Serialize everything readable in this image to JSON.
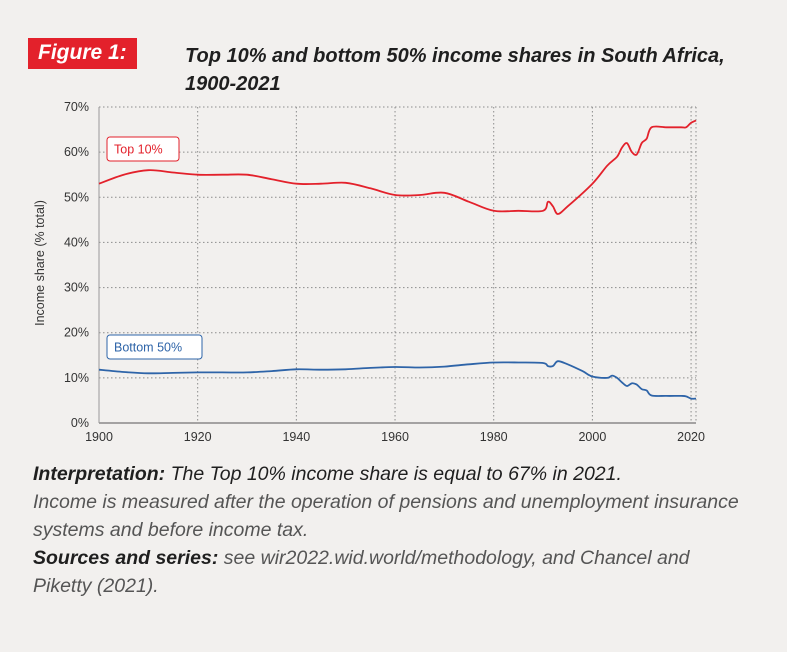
{
  "figure": {
    "label": "Figure 1:",
    "title": "Top 10% and bottom 50% income shares in South Africa, 1900-2021"
  },
  "colors": {
    "top10": "#e3212b",
    "bottom50": "#2e64a8",
    "grid": "#8c8c8c",
    "text": "#333333"
  },
  "chart_data": {
    "type": "line",
    "ylabel": "Income share (% total)",
    "xlim": [
      1900,
      2021
    ],
    "ylim": [
      0,
      70
    ],
    "x_ticks": [
      1900,
      1920,
      1940,
      1960,
      1980,
      2000,
      2020
    ],
    "y_ticks": [
      "0%",
      "10%",
      "20%",
      "30%",
      "40%",
      "50%",
      "60%",
      "70%"
    ],
    "grid": true,
    "series": [
      {
        "name": "Top 10%",
        "color": "#e3212b",
        "x": [
          1900,
          1905,
          1910,
          1915,
          1920,
          1925,
          1930,
          1935,
          1940,
          1945,
          1950,
          1955,
          1960,
          1965,
          1970,
          1975,
          1980,
          1985,
          1990,
          1991,
          1992,
          1993,
          1995,
          2000,
          2003,
          2005,
          2006,
          2007,
          2008,
          2009,
          2010,
          2011,
          2012,
          2015,
          2018,
          2019,
          2020,
          2021
        ],
        "values": [
          53,
          55,
          56,
          55.5,
          55,
          55,
          55,
          54,
          53,
          53,
          53.2,
          52,
          50.5,
          50.5,
          51,
          49,
          47,
          47,
          47,
          49,
          48,
          46.3,
          48,
          53,
          57,
          59,
          61,
          62,
          60,
          59.5,
          62,
          63,
          65.5,
          65.5,
          65.5,
          65.5,
          66.5,
          67
        ]
      },
      {
        "name": "Bottom 50%",
        "color": "#2e64a8",
        "x": [
          1900,
          1905,
          1910,
          1915,
          1920,
          1925,
          1930,
          1935,
          1940,
          1945,
          1950,
          1955,
          1960,
          1965,
          1970,
          1975,
          1980,
          1985,
          1990,
          1991,
          1992,
          1993,
          1995,
          1998,
          2000,
          2003,
          2004,
          2005,
          2006,
          2007,
          2008,
          2009,
          2010,
          2011,
          2012,
          2015,
          2018,
          2019,
          2020,
          2021
        ],
        "values": [
          11.8,
          11.3,
          11,
          11.1,
          11.2,
          11.2,
          11.2,
          11.5,
          11.9,
          11.8,
          11.9,
          12.2,
          12.4,
          12.3,
          12.5,
          13,
          13.4,
          13.4,
          13.3,
          12.6,
          12.6,
          13.7,
          13,
          11.5,
          10.3,
          10,
          10.5,
          10,
          9,
          8.2,
          8.8,
          8.5,
          7.5,
          7.2,
          6.1,
          6,
          6,
          5.9,
          5.4,
          5.4
        ]
      }
    ]
  },
  "legend_labels": {
    "top10": "Top 10%",
    "bottom50": "Bottom 50%"
  },
  "caption": {
    "interp_label": "Interpretation:",
    "interp_text": " The Top 10% income share is equal to 67% in 2021.",
    "interp_note": "Income is measured after the operation of pensions and unemployment insurance systems and before income tax.",
    "sources_label": "Sources and series:",
    "sources_text": " see wir2022.wid.world/methodology, and Chancel and Piketty (2021)."
  }
}
